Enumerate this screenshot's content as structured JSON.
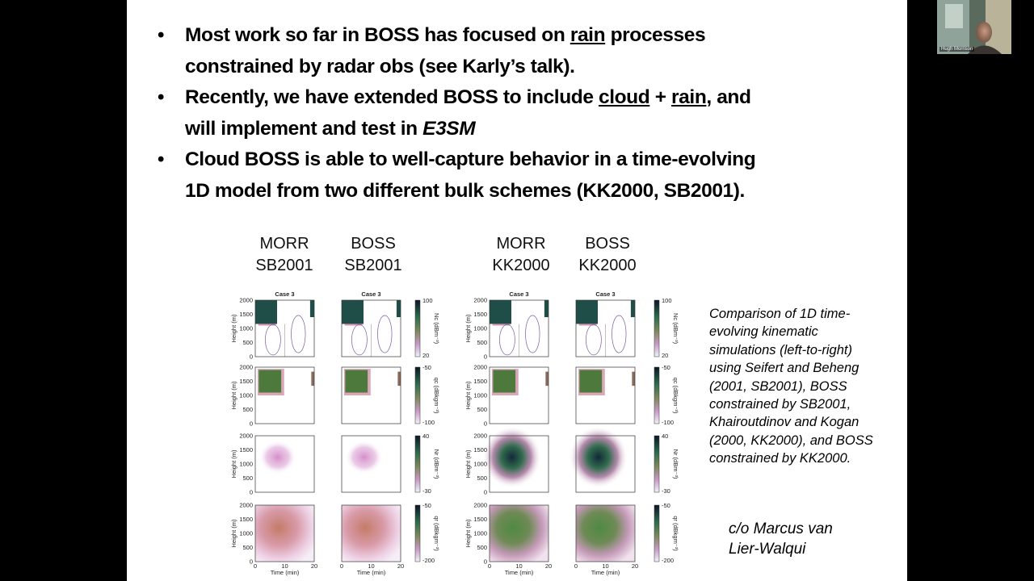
{
  "video_tile": {
    "name": "Hugh Morrison"
  },
  "slide": {
    "bullets": [
      {
        "lines": [
          [
            {
              "text": "Most work so far in BOSS has focused on "
            },
            {
              "text": "rain",
              "style": "underline"
            },
            {
              "text": " processes"
            }
          ],
          [
            {
              "text": "constrained by radar obs (see Karly’s talk)."
            }
          ]
        ]
      },
      {
        "lines": [
          [
            {
              "text": "Recently, we have extended BOSS to include "
            },
            {
              "text": "cloud",
              "style": "underline"
            },
            {
              "text": " + "
            },
            {
              "text": "rain",
              "style": "underline"
            },
            {
              "text": ", and"
            }
          ],
          [
            {
              "text": "will implement and test in "
            },
            {
              "text": "E3SM",
              "style": "italic"
            }
          ]
        ]
      },
      {
        "lines": [
          [
            {
              "text": "Cloud BOSS is able to well-capture behavior in a time-evolving"
            }
          ],
          [
            {
              "text": "1D model from two different bulk schemes (KK2000, SB2001)."
            }
          ]
        ]
      }
    ],
    "column_headers": [
      [
        "MORR",
        "SB2001"
      ],
      [
        "BOSS",
        "SB2001"
      ],
      [
        "MORR",
        "KK2000"
      ],
      [
        "BOSS",
        "KK2000"
      ]
    ],
    "panels": {
      "title": "Case 3",
      "y_label": "Height (m)",
      "x_label": "Time (min)",
      "y_ticks": [
        0,
        500,
        1000,
        1500,
        2000
      ],
      "x_ticks": [
        0,
        10,
        20
      ]
    },
    "colorbars": [
      {
        "label": "Nc (dBm⁻³)",
        "max": 100,
        "min": 20
      },
      {
        "label": "qc (dBkgm⁻³)",
        "max": -50,
        "min": -100
      },
      {
        "label": "Nr (dBm⁻³)",
        "max": 40,
        "min": -30
      },
      {
        "label": "qr (dBkgm⁻³)",
        "max": -50,
        "min": -200
      }
    ],
    "caption": [
      "Comparison of 1D time-",
      "evolving kinematic",
      "simulations (left-to-right)",
      "using Seifert and Beheng",
      "(2001, SB2001), BOSS",
      "constrained by SB2001,",
      "Khairoutdinov and Kogan",
      "(2000, KK2000), and BOSS",
      "constrained by KK2000."
    ],
    "credit": [
      "c/o Marcus van",
      "Lier-Walqui"
    ]
  }
}
